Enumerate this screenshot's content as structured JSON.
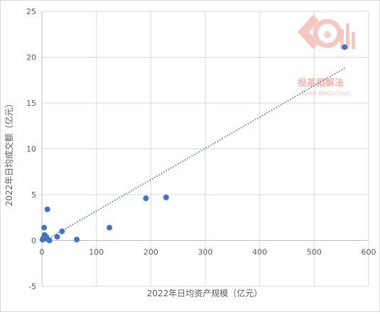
{
  "chart_data": {
    "type": "scatter",
    "title": "",
    "xlabel": "2022年日均资产规模（亿元）",
    "ylabel": "2022年日均成交额（亿元）",
    "xlim": [
      0,
      600
    ],
    "ylim": [
      -5,
      25
    ],
    "x_ticks": [
      0,
      100,
      200,
      300,
      400,
      500,
      600
    ],
    "y_ticks": [
      -5,
      0,
      5,
      10,
      15,
      20,
      25
    ],
    "grid": true,
    "legend": "none",
    "series": [
      {
        "marker_color": "#4472c4",
        "points": [
          {
            "x": 1,
            "y": 0.1
          },
          {
            "x": 3,
            "y": 0.3
          },
          {
            "x": 4,
            "y": 1.4
          },
          {
            "x": 5,
            "y": 0.6
          },
          {
            "x": 6,
            "y": 0.2
          },
          {
            "x": 8,
            "y": 0.4
          },
          {
            "x": 10,
            "y": 3.4
          },
          {
            "x": 12,
            "y": 0.1
          },
          {
            "x": 14,
            "y": 0.0
          },
          {
            "x": 28,
            "y": 0.4
          },
          {
            "x": 37,
            "y": 1.0
          },
          {
            "x": 64,
            "y": 0.1
          },
          {
            "x": 124,
            "y": 1.4
          },
          {
            "x": 191,
            "y": 4.6
          },
          {
            "x": 228,
            "y": 4.7
          },
          {
            "x": 556,
            "y": 21.1
          }
        ]
      }
    ],
    "trendline": {
      "style": "dotted",
      "color": "#4472c4",
      "x": [
        0,
        556
      ],
      "y": [
        -0.2,
        18.8
      ]
    }
  },
  "watermark": {
    "text": "投基稻解法",
    "subtext": "fund deductive",
    "color": "#e8736a"
  }
}
